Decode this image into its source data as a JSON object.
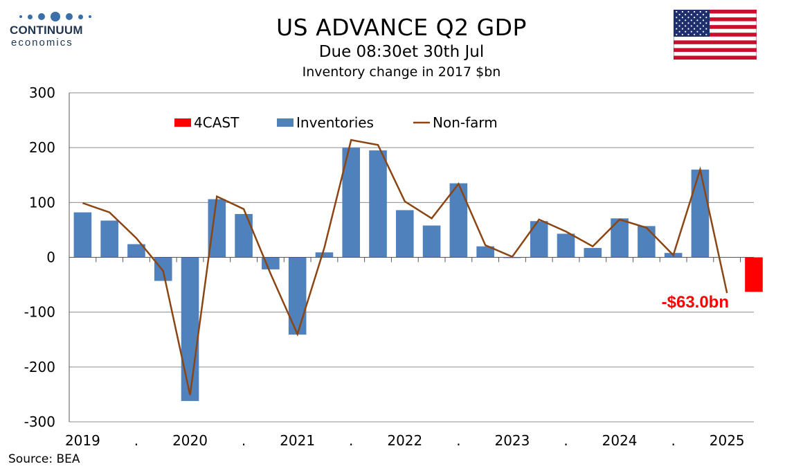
{
  "header": {
    "logo_brand": "CONTINUUM",
    "logo_sub": "economics",
    "title": "US ADVANCE Q2  GDP",
    "subtitle": "Due 08:30et 30th Jul",
    "unit": "Inventory change in 2017 $bn"
  },
  "flag": {
    "name": "us-flag-icon"
  },
  "chart_data": {
    "type": "bar",
    "ylim": [
      -300,
      300
    ],
    "yticks": [
      -300,
      -200,
      -100,
      0,
      100,
      200,
      300
    ],
    "grid": true,
    "legend_position": "top",
    "x_labels": [
      "2019",
      ".",
      "2020",
      ".",
      "2021",
      ".",
      "2022",
      ".",
      "2023",
      ".",
      "2024",
      ".",
      "2025"
    ],
    "categories": [
      "2019Q1",
      "2019Q2",
      "2019Q3",
      "2019Q4",
      "2020Q1",
      "2020Q2",
      "2020Q3",
      "2020Q4",
      "2021Q1",
      "2021Q2",
      "2021Q3",
      "2021Q4",
      "2022Q1",
      "2022Q2",
      "2022Q3",
      "2022Q4",
      "2023Q1",
      "2023Q2",
      "2023Q3",
      "2023Q4",
      "2024Q1",
      "2024Q2",
      "2024Q3",
      "2024Q4",
      "2025Q1",
      "2025Q2"
    ],
    "series": [
      {
        "name": "4CAST",
        "kind": "bar",
        "color": "#ff0000",
        "values": [
          null,
          null,
          null,
          null,
          null,
          null,
          null,
          null,
          null,
          null,
          null,
          null,
          null,
          null,
          null,
          null,
          null,
          null,
          null,
          null,
          null,
          null,
          null,
          null,
          null,
          -63
        ]
      },
      {
        "name": "Inventories",
        "kind": "bar",
        "color": "#4f81bd",
        "values": [
          82,
          67,
          24,
          -43,
          -262,
          106,
          79,
          -22,
          -141,
          9,
          200,
          195,
          86,
          58,
          135,
          20,
          -1,
          66,
          43,
          17,
          71,
          57,
          8,
          160,
          null,
          null
        ]
      },
      {
        "name": "Non-farm",
        "kind": "line",
        "color": "#8b4513",
        "values": [
          99,
          82,
          35,
          -25,
          -251,
          111,
          88,
          -30,
          -140,
          17,
          214,
          205,
          102,
          71,
          134,
          22,
          1,
          69,
          47,
          20,
          69,
          54,
          4,
          160,
          -65,
          null
        ]
      }
    ],
    "annotations": [
      {
        "text": "-$63.0bn",
        "color": "#ff0000"
      }
    ],
    "source": "Source: BEA"
  }
}
